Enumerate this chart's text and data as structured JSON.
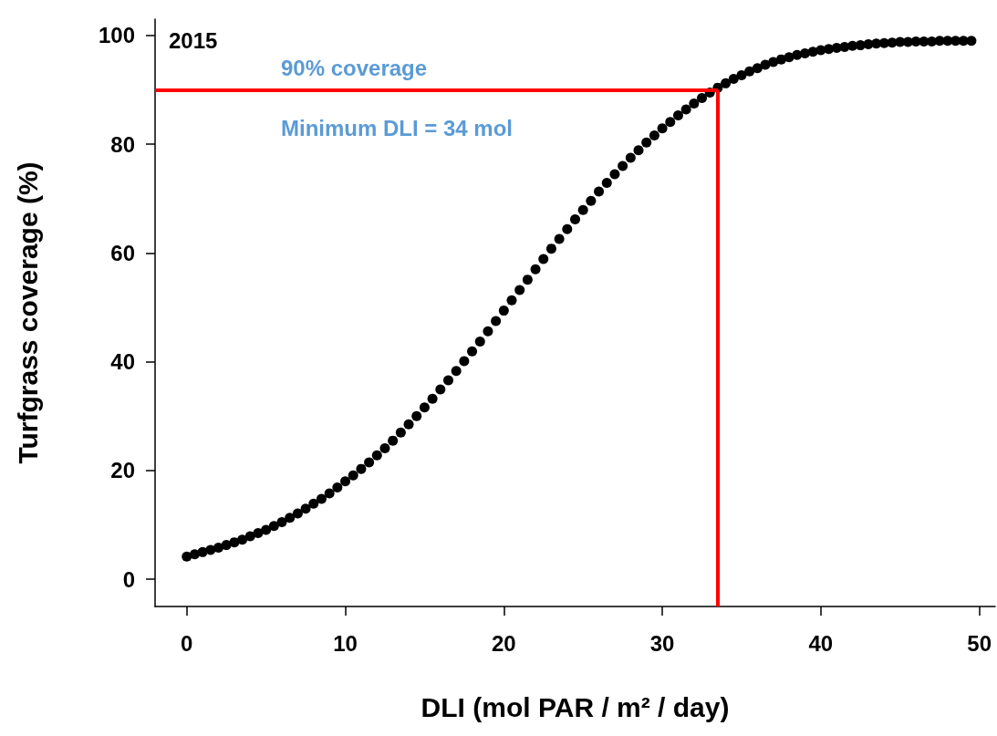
{
  "chart_data": {
    "type": "scatter",
    "xlabel": "DLI (mol PAR / m² / day)",
    "ylabel": "Turfgrass coverage (%)",
    "x": [
      0,
      0.5,
      1,
      1.5,
      2,
      2.5,
      3,
      3.5,
      4,
      4.5,
      5,
      5.5,
      6,
      6.5,
      7,
      7.5,
      8,
      8.5,
      9,
      9.5,
      10,
      10.5,
      11,
      11.5,
      12,
      12.5,
      13,
      13.5,
      14,
      14.5,
      15,
      15.5,
      16,
      16.5,
      17,
      17.5,
      18,
      18.5,
      19,
      19.5,
      20,
      20.5,
      21,
      21.5,
      22,
      22.5,
      23,
      23.5,
      24,
      24.5,
      25,
      25.5,
      26,
      26.5,
      27,
      27.5,
      28,
      28.5,
      29,
      29.5,
      30,
      30.5,
      31,
      31.5,
      32,
      32.5,
      33,
      33.5,
      34,
      34.5,
      35,
      35.5,
      36,
      36.5,
      37,
      37.5,
      38,
      38.5,
      39,
      39.5,
      40,
      40.5,
      41,
      41.5,
      42,
      42.5,
      43,
      43.5,
      44,
      44.5,
      45,
      45.5,
      46,
      46.5,
      47,
      47.5,
      48,
      48.5,
      49,
      49.5
    ],
    "values": [
      4.2,
      4.6,
      5.0,
      5.4,
      5.8,
      6.3,
      6.8,
      7.3,
      7.9,
      8.5,
      9.1,
      9.8,
      10.5,
      11.3,
      12.1,
      13.0,
      13.9,
      14.8,
      15.8,
      16.9,
      18.0,
      19.1,
      20.3,
      21.5,
      22.8,
      24.1,
      25.5,
      27.0,
      28.5,
      30.0,
      31.6,
      33.2,
      34.9,
      36.6,
      38.3,
      40.1,
      41.9,
      43.7,
      45.6,
      47.5,
      49.4,
      51.3,
      53.2,
      55.1,
      57.0,
      58.9,
      60.8,
      62.6,
      64.4,
      66.2,
      67.9,
      69.6,
      71.3,
      72.9,
      74.5,
      76.0,
      77.5,
      78.9,
      80.3,
      81.6,
      82.9,
      84.1,
      85.3,
      86.4,
      87.5,
      88.5,
      89.5,
      90.4,
      91.2,
      92.0,
      92.7,
      93.4,
      94.0,
      94.6,
      95.1,
      95.6,
      96.0,
      96.4,
      96.7,
      97.0,
      97.3,
      97.5,
      97.7,
      97.9,
      98.1,
      98.2,
      98.4,
      98.5,
      98.6,
      98.7,
      98.8,
      98.8,
      98.9,
      98.9,
      98.9,
      99.0,
      99.0,
      99.0,
      99.0,
      99.0
    ],
    "color": "#000000",
    "marker": "circle",
    "grid": false,
    "xlim": [
      -2,
      51
    ],
    "xticks": [
      0,
      10,
      20,
      30,
      40,
      50
    ],
    "ylim": [
      -5,
      103
    ],
    "yticks": [
      0,
      20,
      40,
      60,
      80,
      100
    ],
    "ref_lines": [
      {
        "axis": "y",
        "value": 90,
        "color": "#ff0000"
      },
      {
        "axis": "x",
        "value": 33.5,
        "color": "#ff0000"
      }
    ],
    "annotations": [
      "2015",
      "90% coverage",
      "Minimum DLI = 34 mol"
    ]
  }
}
